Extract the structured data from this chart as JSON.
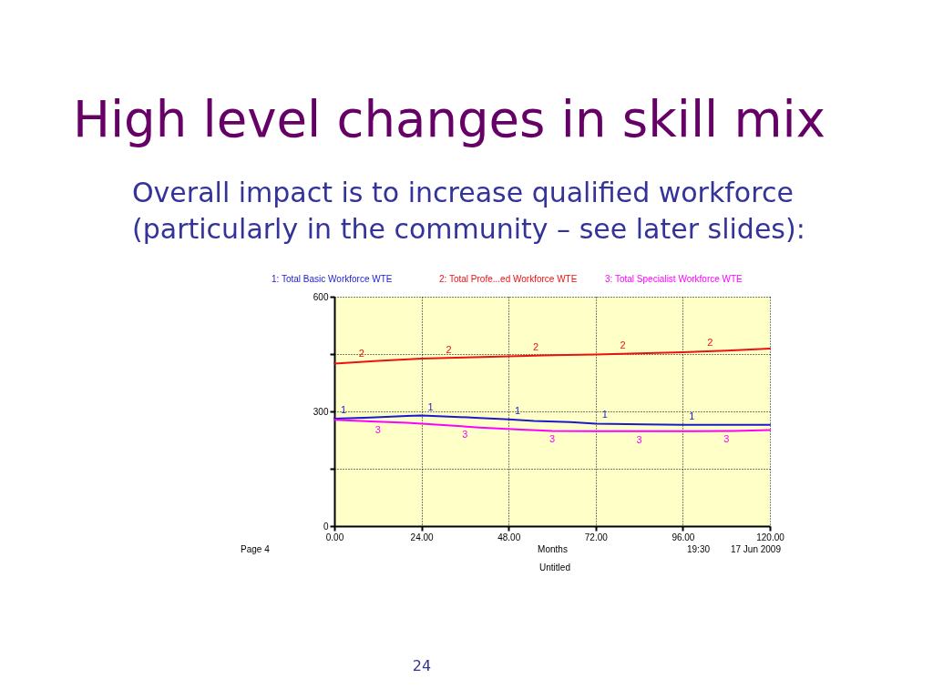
{
  "chart_data": {
    "type": "line",
    "title": "High level changes in skill mix",
    "subtitle": "Overall impact is to increase qualified workforce (particularly in the community – see later slides):",
    "xlabel": "Months",
    "series": [
      {
        "name": "1: Total Basic Workforce WTE",
        "color": "#1a1acc",
        "x": [
          0,
          10,
          20,
          24,
          30,
          40,
          48,
          55,
          65,
          72,
          85,
          96,
          110,
          120
        ],
        "values": [
          281,
          284,
          288,
          289,
          287,
          283,
          279,
          275,
          272,
          268,
          266,
          265,
          265,
          265
        ]
      },
      {
        "name": "2: Total Profe...ed Workforce WTE",
        "color": "#ee1111",
        "x": [
          0,
          12,
          24,
          36,
          48,
          60,
          72,
          84,
          96,
          108,
          120
        ],
        "values": [
          425,
          432,
          438,
          441,
          444,
          447,
          449,
          452,
          455,
          459,
          464
        ]
      },
      {
        "name": "3: Total Specialist Workforce WTE",
        "color": "#ff00ff",
        "x": [
          0,
          10,
          20,
          30,
          40,
          50,
          60,
          72,
          96,
          110,
          120
        ],
        "values": [
          278,
          274,
          270,
          264,
          258,
          253,
          249,
          248,
          248,
          249,
          251
        ]
      }
    ],
    "xlim": [
      0,
      120
    ],
    "xticks": [
      {
        "value": 0,
        "label": "0.00"
      },
      {
        "value": 24,
        "label": "24.00"
      },
      {
        "value": 48,
        "label": "48.00"
      },
      {
        "value": 72,
        "label": "72.00"
      },
      {
        "value": 96,
        "label": "96.00"
      },
      {
        "value": 120,
        "label": "120.00"
      }
    ],
    "ylim": [
      0,
      600
    ],
    "yticks": [
      0,
      {
        "value": 150,
        "label": null
      },
      300,
      {
        "value": 450,
        "label": null
      },
      600
    ],
    "grid": true,
    "legend": "top",
    "line_style": "solid",
    "annotations": [
      "Page 4",
      "19:30",
      "17 Jun 2009",
      "Untitled",
      "24",
      {
        "text": "1",
        "x": 2.5,
        "y": 281
      },
      {
        "text": "1",
        "x": 26.5,
        "y": 288
      },
      {
        "text": "1",
        "x": 50.5,
        "y": 278
      },
      {
        "text": "1",
        "x": 74.5,
        "y": 268
      },
      {
        "text": "1",
        "x": 98.5,
        "y": 265
      },
      {
        "text": "2",
        "x": 7.5,
        "y": 429
      },
      {
        "text": "2",
        "x": 31.5,
        "y": 439
      },
      {
        "text": "2",
        "x": 55.5,
        "y": 446
      },
      {
        "text": "2",
        "x": 79.5,
        "y": 451
      },
      {
        "text": "2",
        "x": 103.5,
        "y": 457
      },
      {
        "text": "3",
        "x": 12,
        "y": 273
      },
      {
        "text": "3",
        "x": 36,
        "y": 261
      },
      {
        "text": "3",
        "x": 60,
        "y": 249
      },
      {
        "text": "3",
        "x": 84,
        "y": 248
      },
      {
        "text": "3",
        "x": 108,
        "y": 249
      }
    ]
  }
}
